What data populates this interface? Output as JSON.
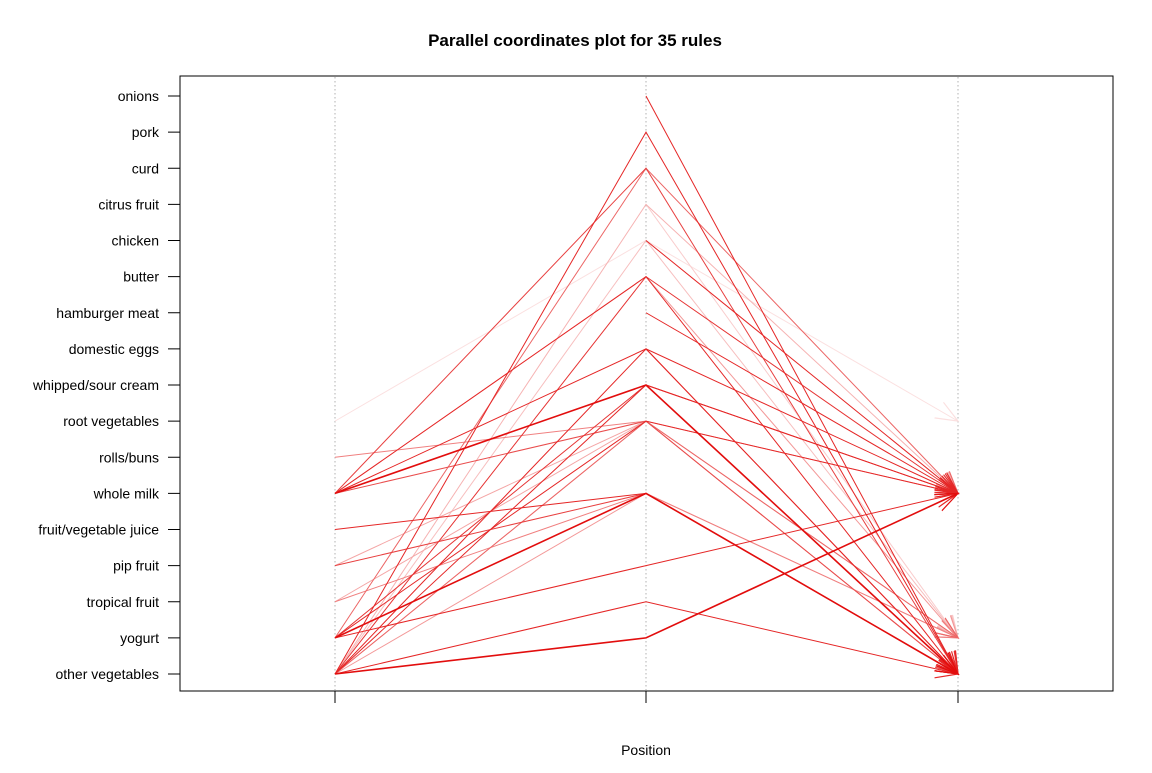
{
  "chart_data": {
    "type": "parallel-coordinates",
    "title": "Parallel coordinates plot for 35 rules",
    "xlabel": "Position",
    "grid": "vertical dotted lines at each position",
    "line_color": "#E00000",
    "items": [
      "onions",
      "pork",
      "curd",
      "citrus fruit",
      "chicken",
      "butter",
      "hamburger meat",
      "domestic eggs",
      "whipped/sour cream",
      "root vegetables",
      "rolls/buns",
      "whole milk",
      "fruit/vegetable juice",
      "pip fruit",
      "tropical fruit",
      "yogurt",
      "other vegetables"
    ],
    "rules": [
      {
        "path": [
          null,
          "onions",
          "other vegetables"
        ],
        "shade": 0.85
      },
      {
        "path": [
          "other vegetables",
          "pork",
          "other vegetables"
        ],
        "shade": 0.85
      },
      {
        "path": [
          "whole milk",
          "curd",
          "other vegetables"
        ],
        "shade": 0.75
      },
      {
        "path": [
          "yogurt",
          "curd",
          "whole milk"
        ],
        "shade": 0.6
      },
      {
        "path": [
          "other vegetables",
          "citrus fruit",
          "whole milk"
        ],
        "shade": 0.3
      },
      {
        "path": [
          null,
          "citrus fruit",
          "yogurt"
        ],
        "shade": 0.2
      },
      {
        "path": [
          "root vegetables",
          "chicken",
          "root vegetables"
        ],
        "shade": 0.12
      },
      {
        "path": [
          null,
          "chicken",
          "whole milk"
        ],
        "shade": 0.85
      },
      {
        "path": [
          "whole milk",
          "butter",
          "other vegetables"
        ],
        "shade": 0.85
      },
      {
        "path": [
          "other vegetables",
          "butter",
          "whole milk"
        ],
        "shade": 0.8
      },
      {
        "path": [
          null,
          "hamburger meat",
          "whole milk"
        ],
        "shade": 0.85
      },
      {
        "path": [
          "whole milk",
          "domestic eggs",
          "other vegetables"
        ],
        "shade": 0.85
      },
      {
        "path": [
          "other vegetables",
          "domestic eggs",
          "whole milk"
        ],
        "shade": 0.85
      },
      {
        "path": [
          "whole milk",
          "whipped/sour cream",
          "other vegetables"
        ],
        "shade": 0.95
      },
      {
        "path": [
          "yogurt",
          "whipped/sour cream",
          "whole milk"
        ],
        "shade": 0.8
      },
      {
        "path": [
          "other vegetables",
          "whipped/sour cream",
          "whole milk"
        ],
        "shade": 0.85
      },
      {
        "path": [
          "whole milk",
          "root vegetables",
          "other vegetables"
        ],
        "shade": 0.7
      },
      {
        "path": [
          "rolls/buns",
          "root vegetables",
          "other vegetables"
        ],
        "shade": 0.5
      },
      {
        "path": [
          "tropical fruit",
          "root vegetables",
          "other vegetables"
        ],
        "shade": 0.35
      },
      {
        "path": [
          "yogurt",
          "root vegetables",
          "whole milk"
        ],
        "shade": 0.85
      },
      {
        "path": [
          "pip fruit",
          "root vegetables",
          "yogurt"
        ],
        "shade": 0.35
      },
      {
        "path": [
          "other vegetables",
          "root vegetables",
          "whole milk"
        ],
        "shade": 0.4
      },
      {
        "path": [
          "yogurt",
          "whole milk",
          "other vegetables"
        ],
        "shade": 0.95
      },
      {
        "path": [
          "fruit/vegetable juice",
          "whole milk",
          "other vegetables"
        ],
        "shade": 0.85
      },
      {
        "path": [
          "pip fruit",
          "whole milk",
          "other vegetables"
        ],
        "shade": 0.75
      },
      {
        "path": [
          "tropical fruit",
          "whole milk",
          "yogurt"
        ],
        "shade": 0.5
      },
      {
        "path": [
          "other vegetables",
          "whole milk",
          "yogurt"
        ],
        "shade": 0.4
      },
      {
        "path": [
          null,
          "whole milk",
          "other vegetables"
        ],
        "shade": 0.3
      },
      {
        "path": [
          "yogurt",
          "pip fruit",
          "whole milk"
        ],
        "shade": 0.85
      },
      {
        "path": [
          "other vegetables",
          "tropical fruit",
          "other vegetables"
        ],
        "shade": 0.85
      },
      {
        "path": [
          "other vegetables",
          "yogurt",
          "whole milk"
        ],
        "shade": 0.95
      },
      {
        "path": [
          "other vegetables",
          "root vegetables",
          "yogurt"
        ],
        "shade": 0.6
      },
      {
        "path": [
          "whole milk",
          "butter",
          "yogurt"
        ],
        "shade": 0.4
      },
      {
        "path": [
          "other vegetables",
          "chicken",
          "yogurt"
        ],
        "shade": 0.25
      },
      {
        "path": [
          null,
          "domestic eggs",
          "other vegetables"
        ],
        "shade": 0.8
      }
    ]
  }
}
